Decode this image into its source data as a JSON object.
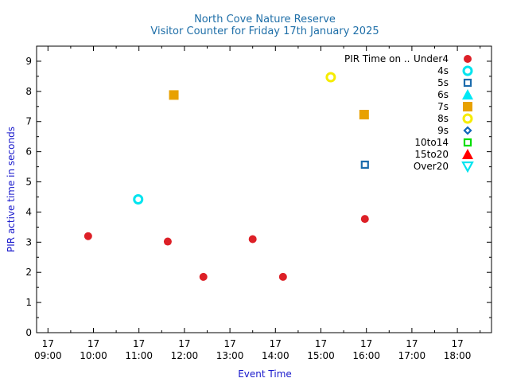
{
  "chart_data": {
    "type": "scatter",
    "title": "North Cove Nature Reserve",
    "subtitle": "Visitor Counter for Friday 17th January 2025",
    "xlabel": "Event Time",
    "ylabel": "PIR active time in seconds",
    "xlim": [
      "2025-01-17 08:45",
      "2025-01-17 18:45"
    ],
    "ylim": [
      0,
      9.5
    ],
    "x_ticks": [
      {
        "day": "17",
        "time": "09:00",
        "value": "2025-01-17 09:00"
      },
      {
        "day": "17",
        "time": "10:00",
        "value": "2025-01-17 10:00"
      },
      {
        "day": "17",
        "time": "11:00",
        "value": "2025-01-17 11:00"
      },
      {
        "day": "17",
        "time": "12:00",
        "value": "2025-01-17 12:00"
      },
      {
        "day": "17",
        "time": "13:00",
        "value": "2025-01-17 13:00"
      },
      {
        "day": "17",
        "time": "14:00",
        "value": "2025-01-17 14:00"
      },
      {
        "day": "17",
        "time": "15:00",
        "value": "2025-01-17 15:00"
      },
      {
        "day": "17",
        "time": "16:00",
        "value": "2025-01-17 16:00"
      },
      {
        "day": "17",
        "time": "17:00",
        "value": "2025-01-17 17:00"
      },
      {
        "day": "17",
        "time": "18:00",
        "value": "2025-01-17 18:00"
      }
    ],
    "y_ticks": [
      "0",
      "1",
      "2",
      "3",
      "4",
      "5",
      "6",
      "7",
      "8",
      "9"
    ],
    "grid": false,
    "legend_position": "top-right",
    "legend_title": "PIR Time on ..",
    "series": [
      {
        "name": "Under4",
        "marker": "filled-circle",
        "color": "#dd2027",
        "points": [
          {
            "x": "2025-01-17 09:53",
            "y": 3.2
          },
          {
            "x": "2025-01-17 11:38",
            "y": 3.02
          },
          {
            "x": "2025-01-17 12:25",
            "y": 1.85
          },
          {
            "x": "2025-01-17 13:30",
            "y": 3.1
          },
          {
            "x": "2025-01-17 14:10",
            "y": 1.85
          },
          {
            "x": "2025-01-17 15:58",
            "y": 3.77
          }
        ]
      },
      {
        "name": "4s",
        "marker": "open-circle",
        "color": "#00e4ef",
        "points": [
          {
            "x": "2025-01-17 10:59",
            "y": 4.42
          }
        ]
      },
      {
        "name": "5s",
        "marker": "open-square",
        "color": "#1c6cad",
        "points": [
          {
            "x": "2025-01-17 15:58",
            "y": 5.57
          }
        ]
      },
      {
        "name": "6s",
        "marker": "filled-triangle-up",
        "color": "#00e8f5",
        "points": []
      },
      {
        "name": "7s",
        "marker": "filled-square",
        "color": "#e8a100",
        "points": [
          {
            "x": "2025-01-17 11:46",
            "y": 7.88
          },
          {
            "x": "2025-01-17 15:57",
            "y": 7.23
          }
        ]
      },
      {
        "name": "8s",
        "marker": "open-circle",
        "color": "#f6ec00",
        "points": [
          {
            "x": "2025-01-17 15:13",
            "y": 8.47
          }
        ]
      },
      {
        "name": "9s",
        "marker": "open-diamond",
        "color": "#1166bb",
        "points": []
      },
      {
        "name": "10to14",
        "marker": "open-square",
        "color": "#00dd00",
        "points": []
      },
      {
        "name": "15to20",
        "marker": "filled-triangle-up",
        "color": "#ff0000",
        "points": []
      },
      {
        "name": "Over20",
        "marker": "open-triangle-down",
        "color": "#00e4ef",
        "points": []
      }
    ]
  }
}
